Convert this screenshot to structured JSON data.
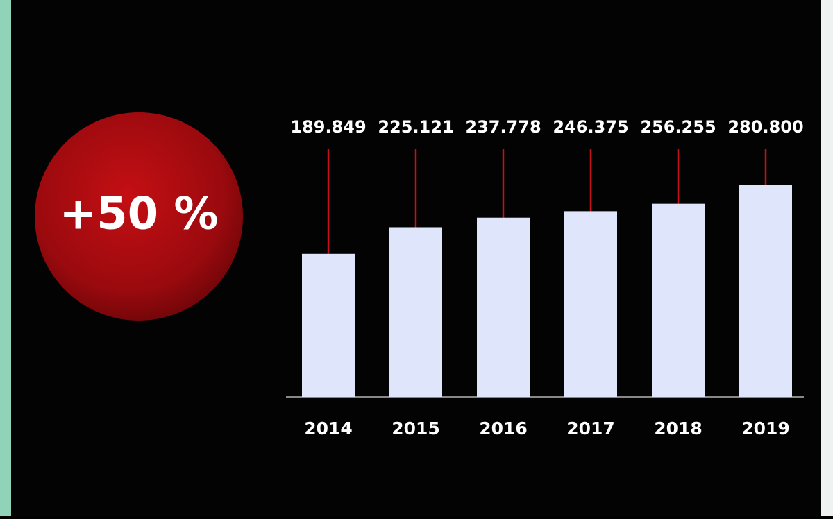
{
  "chart_data": {
    "type": "bar",
    "annotation": "+50 %",
    "categories": [
      "2014",
      "2015",
      "2016",
      "2017",
      "2018",
      "2019"
    ],
    "values": [
      189.849,
      225.121,
      237.778,
      246.375,
      256.255,
      280.8
    ],
    "value_labels": [
      "189.849",
      "225.121",
      "237.778",
      "246.375",
      "256.255",
      "280.800"
    ],
    "color": "#dfe6fb",
    "connector_color": "#c8101a"
  }
}
